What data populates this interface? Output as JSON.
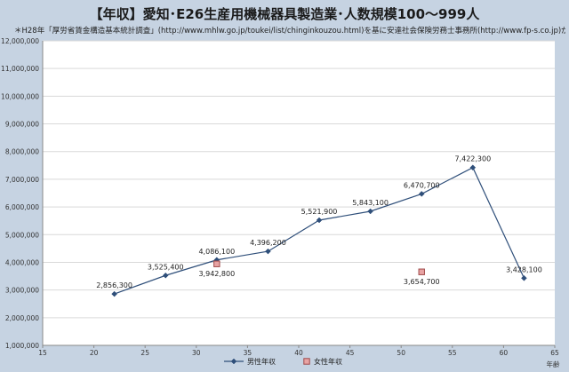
{
  "header": {
    "title": "【年収】愛知･E26生産用機械器具製造業･人数規模100～999人",
    "note": "＊H28年「厚労省賃金構造基本統計調査」(http://www.mhlw.go.jp/toukei/list/chinginkouzou.html)を基に安達社会保険労務士事務所(http://www.fp-s.co.jp)が作成"
  },
  "colors": {
    "male": "#2f4f7a",
    "female_fill": "#e8a4a4",
    "female_border": "#a04a4a",
    "grid": "#d9d9d9"
  },
  "chart_data": {
    "type": "scatter",
    "xlabel": "年齢",
    "ylabel": "",
    "xlim": [
      15,
      65
    ],
    "ylim": [
      1000000,
      12000000
    ],
    "xticks": [
      15,
      20,
      25,
      30,
      35,
      40,
      45,
      50,
      55,
      60,
      65
    ],
    "yticks": [
      1000000,
      2000000,
      3000000,
      4000000,
      5000000,
      6000000,
      7000000,
      8000000,
      9000000,
      10000000,
      11000000,
      12000000
    ],
    "xtick_labels": [
      "15",
      "20",
      "25",
      "30",
      "35",
      "40",
      "45",
      "50",
      "55",
      "60",
      "65"
    ],
    "ytick_labels": [
      "1,000,000",
      "2,000,000",
      "3,000,000",
      "4,000,000",
      "5,000,000",
      "6,000,000",
      "7,000,000",
      "8,000,000",
      "9,000,000",
      "10,000,000",
      "11,000,000",
      "12,000,000"
    ],
    "grid": "horizontal",
    "legend_position": "bottom",
    "series": [
      {
        "name": "男性年収",
        "marker": "diamond",
        "line": true,
        "points": [
          {
            "x": 22,
            "y": 2856300,
            "label": "2,856,300"
          },
          {
            "x": 27,
            "y": 3525400,
            "label": "3,525,400"
          },
          {
            "x": 32,
            "y": 4086100,
            "label": "4,086,100"
          },
          {
            "x": 37,
            "y": 4396200,
            "label": "4,396,200"
          },
          {
            "x": 42,
            "y": 5521900,
            "label": "5,521,900"
          },
          {
            "x": 47,
            "y": 5843100,
            "label": "5,843,100"
          },
          {
            "x": 52,
            "y": 6470700,
            "label": "6,470,700"
          },
          {
            "x": 57,
            "y": 7422300,
            "label": "7,422,300"
          },
          {
            "x": 62,
            "y": 3428100,
            "label": "3,428,100"
          }
        ]
      },
      {
        "name": "女性年収",
        "marker": "square",
        "line": false,
        "points": [
          {
            "x": 32,
            "y": 3942800,
            "label": "3,942,800"
          },
          {
            "x": 52,
            "y": 3654700,
            "label": "3,654,700"
          }
        ]
      }
    ]
  }
}
